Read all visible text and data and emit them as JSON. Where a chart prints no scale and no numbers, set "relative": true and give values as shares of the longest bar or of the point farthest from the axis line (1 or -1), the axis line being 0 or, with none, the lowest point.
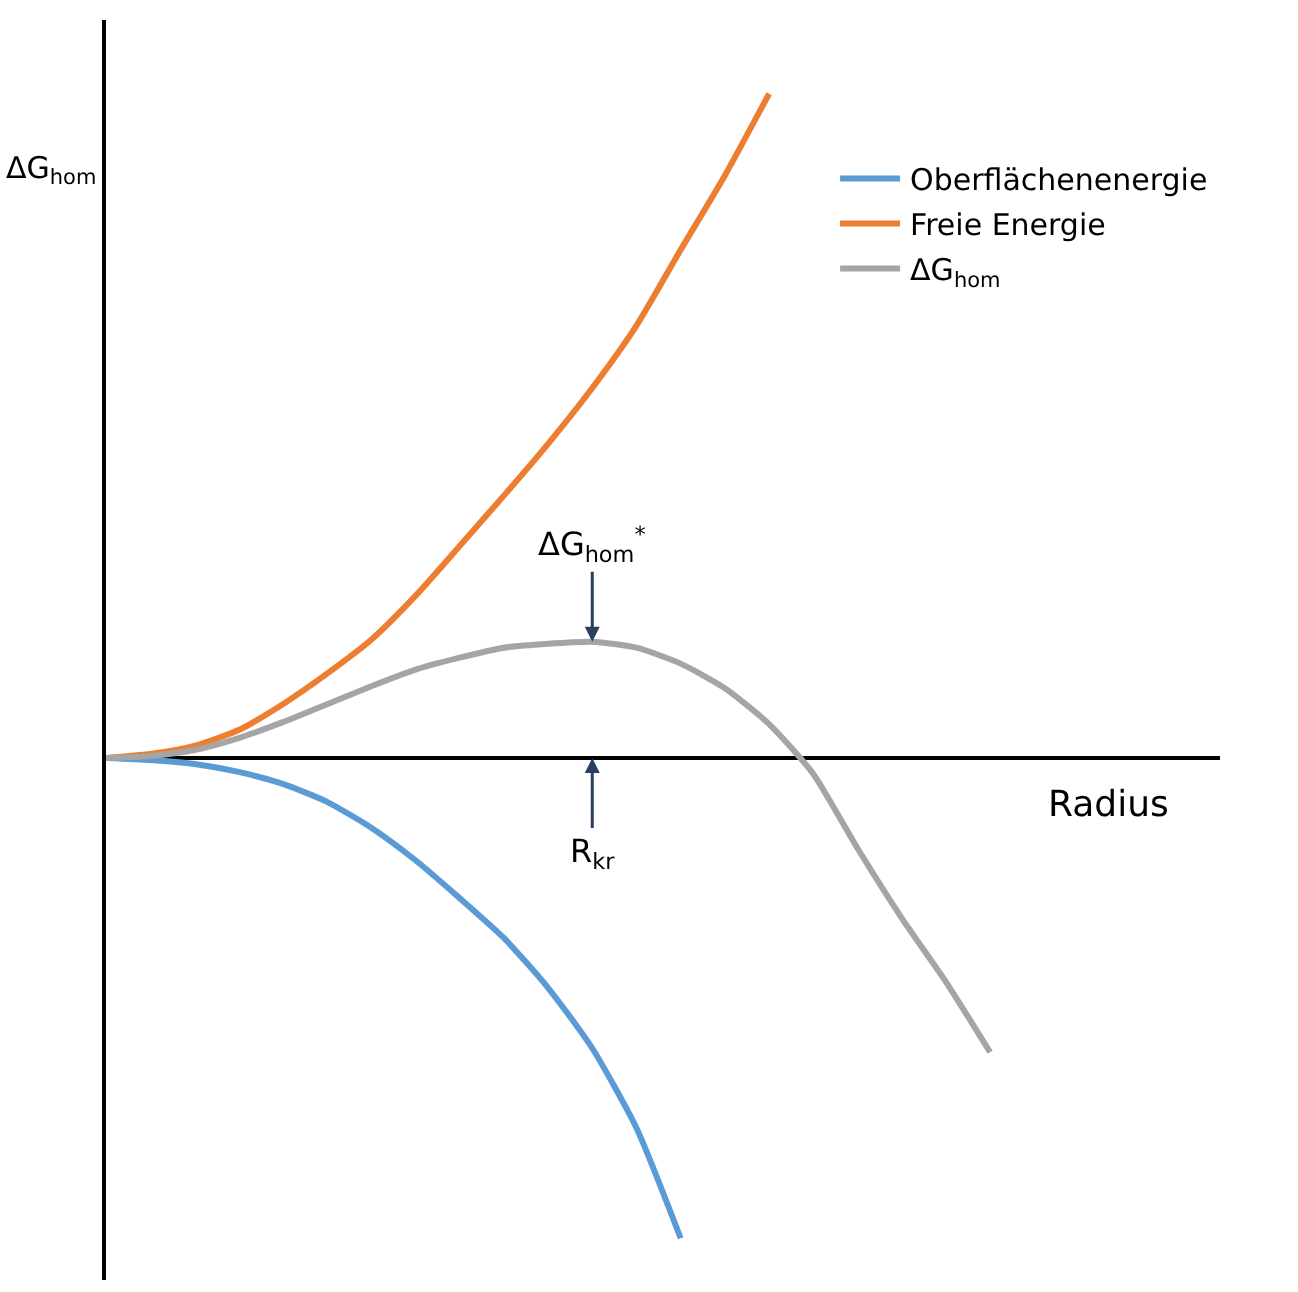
{
  "chart_data": {
    "type": "line",
    "relative": true,
    "xlabel": "Radius",
    "ylabel": "ΔG$_{hom}$",
    "categories": [
      null,
      null,
      null,
      null,
      null,
      null,
      null,
      null,
      null,
      null,
      null,
      null,
      null,
      null,
      null,
      null,
      null,
      null,
      null,
      null,
      null,
      null,
      null,
      null,
      null,
      null
    ],
    "series": [
      {
        "name": "Oberflächenenergie",
        "color": "#5b9bd5",
        "values": [
          0,
          -0.003,
          -0.009,
          -0.021,
          -0.039,
          -0.066,
          -0.105,
          -0.154,
          -0.211,
          -0.271,
          -0.346,
          -0.437,
          -0.557,
          -0.723,
          null,
          null,
          null,
          null,
          null,
          null,
          null,
          null,
          null,
          null,
          null,
          null
        ]
      },
      {
        "name": "Freie Energie",
        "color": "#ed7d31",
        "values": [
          0,
          0.006,
          0.018,
          0.042,
          0.081,
          0.127,
          0.178,
          0.244,
          0.319,
          0.395,
          0.473,
          0.557,
          0.651,
          0.765,
          0.877,
          1,
          null,
          null,
          null,
          null,
          null,
          null,
          null,
          null,
          null,
          null
        ]
      },
      {
        "name": "ΔG$_{hom}$",
        "color": "#a5a5a5",
        "values": [
          0,
          0.003,
          0.012,
          0.03,
          0.054,
          0.081,
          0.108,
          0.133,
          0.151,
          0.166,
          0.172,
          0.175,
          0.166,
          0.142,
          0.105,
          0.051,
          -0.024,
          -0.136,
          -0.241,
          -0.337,
          -0.443,
          null,
          null,
          null,
          null,
          null
        ]
      }
    ],
    "annotations": [
      "ΔG$_{hom}$$^{*}$",
      "R$_{kr}$"
    ],
    "legend": "top right",
    "marker": "none",
    "line_style": "solid"
  }
}
